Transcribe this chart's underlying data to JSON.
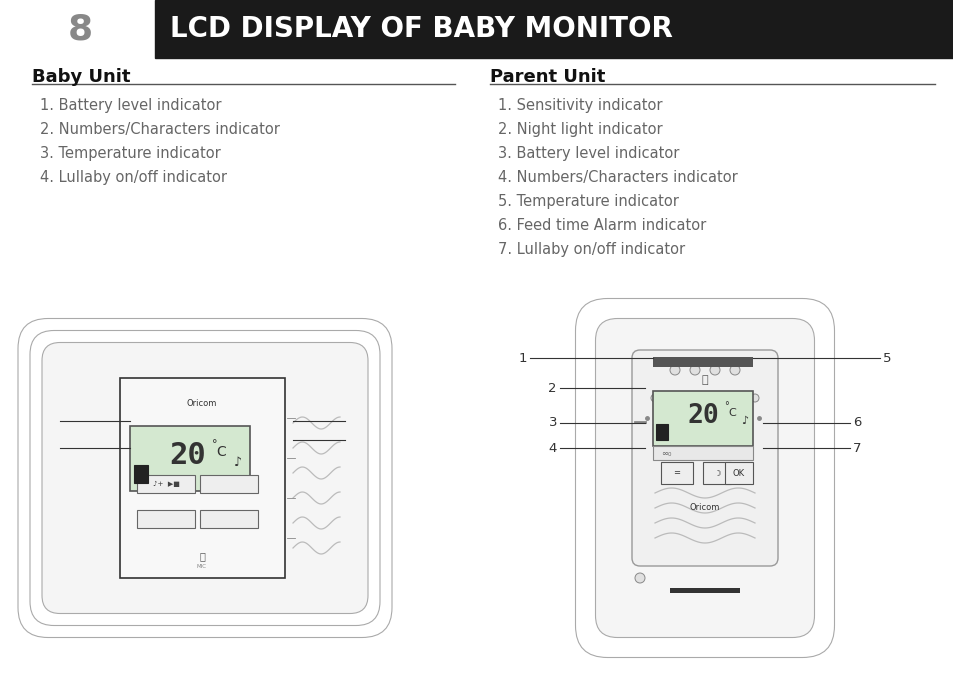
{
  "page_num": "8",
  "title": "LCD DISPLAY OF BABY MONITOR",
  "title_bg": "#1a1a1a",
  "title_color": "#ffffff",
  "page_num_color": "#888888",
  "bg_color": "#ffffff",
  "baby_unit_title": "Baby Unit",
  "baby_unit_items": [
    "1. Battery level indicator",
    "2. Numbers/Characters indicator",
    "3. Temperature indicator",
    "4. Lullaby on/off indicator"
  ],
  "parent_unit_title": "Parent Unit",
  "parent_unit_items": [
    "1. Sensitivity indicator",
    "2. Night light indicator",
    "3. Battery level indicator",
    "4. Numbers/Characters indicator",
    "5. Temperature indicator",
    "6. Feed time Alarm indicator",
    "7. Lullaby on/off indicator"
  ],
  "text_color": "#666666",
  "heading_color": "#111111",
  "line_color": "#555555"
}
